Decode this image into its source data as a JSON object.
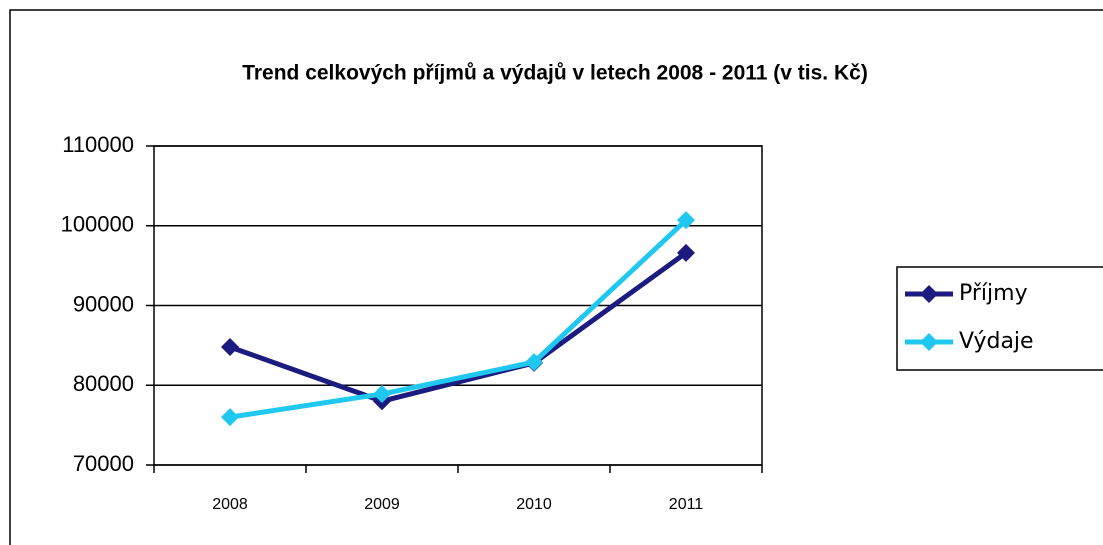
{
  "chart_data": {
    "type": "line",
    "title": "Trend celkových příjmů a výdajů v letech  2008 - 2011 (v tis. Kč)",
    "categories": [
      "2008",
      "2009",
      "2010",
      "2011"
    ],
    "series": [
      {
        "name": "Příjmy",
        "color": "#1b1b80",
        "values": [
          84800,
          78000,
          82800,
          96600
        ]
      },
      {
        "name": "Výdaje",
        "color": "#20c8f0",
        "values": [
          76000,
          78900,
          82900,
          100700
        ]
      }
    ],
    "ylim": [
      70000,
      110000
    ],
    "yticks": [
      70000,
      80000,
      90000,
      100000,
      110000
    ],
    "grid": true,
    "legend": "right"
  }
}
